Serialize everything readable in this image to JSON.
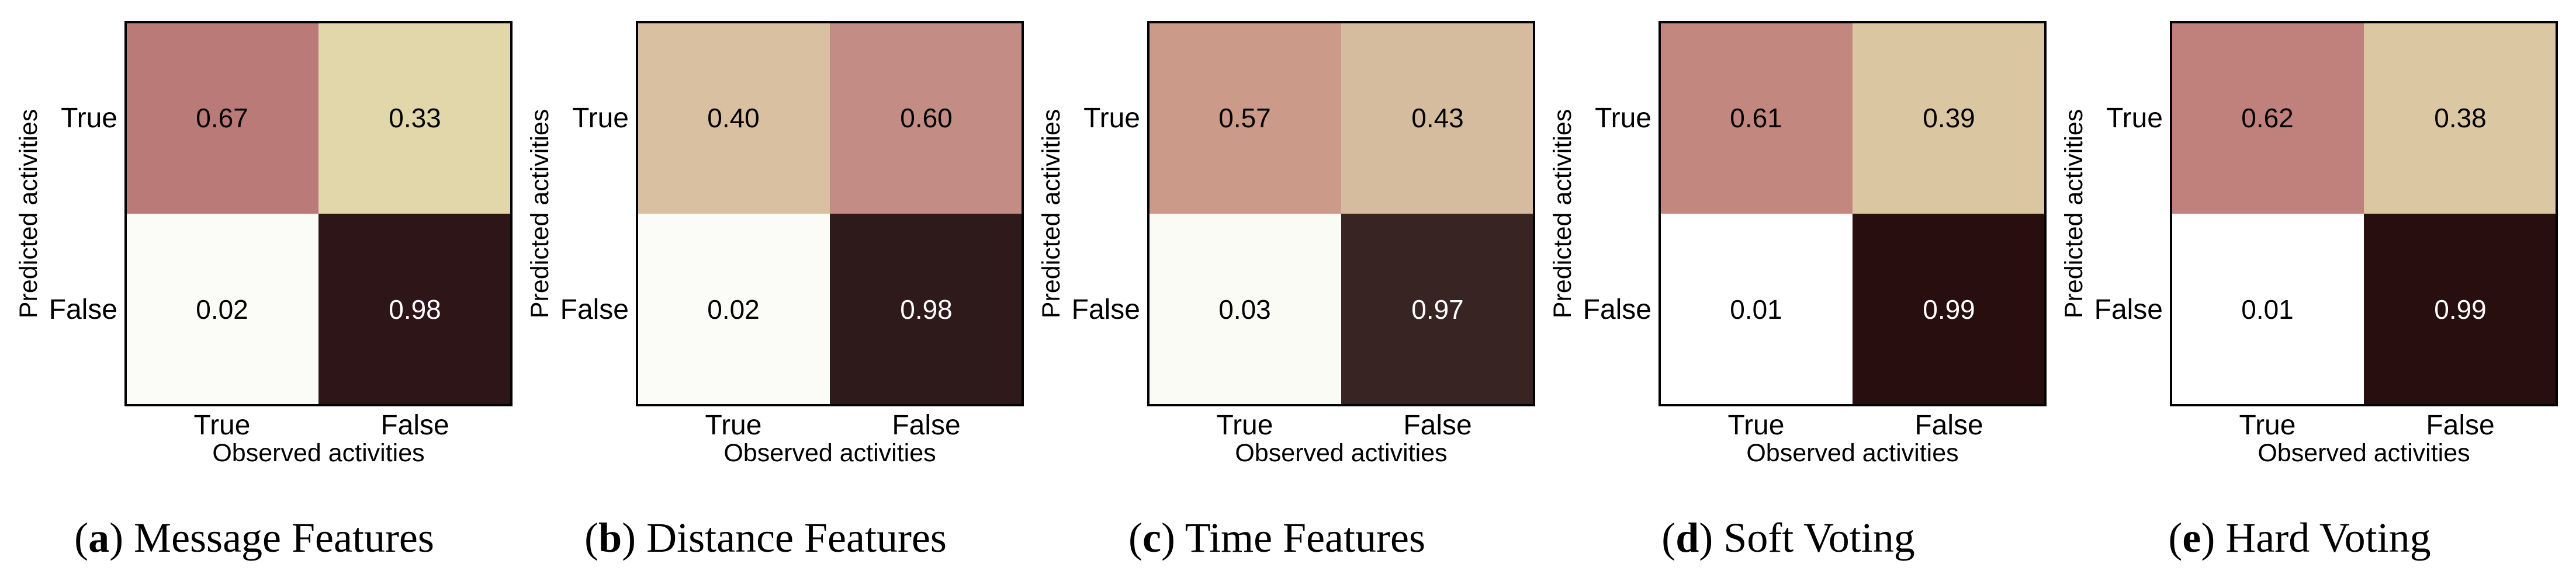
{
  "chart_data": [
    {
      "type": "heatmap",
      "caption_letter": "a",
      "caption_text": "Message Features",
      "xlabel": "Observed activities",
      "ylabel": "Predicted activities",
      "x_ticks": [
        "True",
        "False"
      ],
      "y_ticks": [
        "True",
        "False"
      ],
      "values": [
        [
          0.67,
          0.33
        ],
        [
          0.02,
          0.98
        ]
      ],
      "labels": [
        [
          "0.67",
          "0.33"
        ],
        [
          "0.02",
          "0.98"
        ]
      ],
      "colors": [
        [
          "#b97a78",
          "#e1d7aa"
        ],
        [
          "#fbfbf8",
          "#2e1518"
        ]
      ]
    },
    {
      "type": "heatmap",
      "caption_letter": "b",
      "caption_text": "Distance Features",
      "xlabel": "Observed activities",
      "ylabel": "Predicted activities",
      "x_ticks": [
        "True",
        "False"
      ],
      "y_ticks": [
        "True",
        "False"
      ],
      "values": [
        [
          0.4,
          0.6
        ],
        [
          0.02,
          0.98
        ]
      ],
      "labels": [
        [
          "0.40",
          "0.60"
        ],
        [
          "0.02",
          "0.98"
        ]
      ],
      "colors": [
        [
          "#d8c0a0",
          "#c38c84"
        ],
        [
          "#fbfbf8",
          "#2e1a1a"
        ]
      ]
    },
    {
      "type": "heatmap",
      "caption_letter": "c",
      "caption_text": "Time Features",
      "xlabel": "Observed activities",
      "ylabel": "Predicted activities",
      "x_ticks": [
        "True",
        "False"
      ],
      "y_ticks": [
        "True",
        "False"
      ],
      "values": [
        [
          0.57,
          0.43
        ],
        [
          0.03,
          0.97
        ]
      ],
      "labels": [
        [
          "0.57",
          "0.43"
        ],
        [
          "0.03",
          "0.97"
        ]
      ],
      "colors": [
        [
          "#cb9a88",
          "#d6bc9e"
        ],
        [
          "#fbfbf6",
          "#392424"
        ]
      ]
    },
    {
      "type": "heatmap",
      "caption_letter": "d",
      "caption_text": "Soft Voting",
      "xlabel": "Observed activities",
      "ylabel": "Predicted activities",
      "x_ticks": [
        "True",
        "False"
      ],
      "y_ticks": [
        "True",
        "False"
      ],
      "values": [
        [
          0.61,
          0.39
        ],
        [
          0.01,
          0.99
        ]
      ],
      "labels": [
        [
          "0.61",
          "0.39"
        ],
        [
          "0.01",
          "0.99"
        ]
      ],
      "colors": [
        [
          "#c28880",
          "#dbc6a2"
        ],
        [
          "#ffffff",
          "#280e0f"
        ]
      ]
    },
    {
      "type": "heatmap",
      "caption_letter": "e",
      "caption_text": "Hard Voting",
      "xlabel": "Observed activities",
      "ylabel": "Predicted activities",
      "x_ticks": [
        "True",
        "False"
      ],
      "y_ticks": [
        "True",
        "False"
      ],
      "values": [
        [
          0.62,
          0.38
        ],
        [
          0.01,
          0.99
        ]
      ],
      "labels": [
        [
          "0.62",
          "0.38"
        ],
        [
          "0.01",
          "0.99"
        ]
      ],
      "colors": [
        [
          "#c0807c",
          "#dbc7a2"
        ],
        [
          "#ffffff",
          "#280e0f"
        ]
      ]
    }
  ]
}
